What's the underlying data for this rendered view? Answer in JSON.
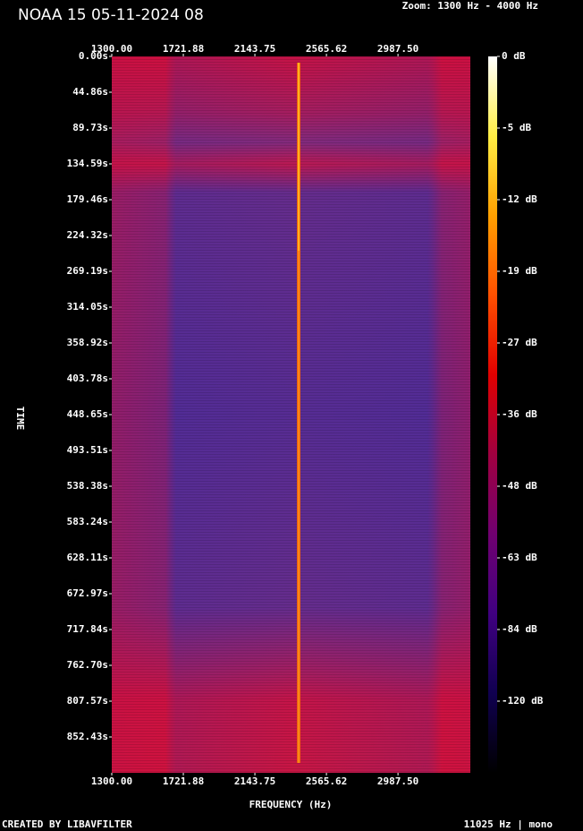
{
  "chart_data": {
    "type": "spectrogram",
    "title": "NOAA 15 05-11-2024 08",
    "subtitle": "Zoom: 1300 Hz - 4000 Hz",
    "x_label": "FREQUENCY (Hz)",
    "y_label": "TIME",
    "footer_left": "CREATED BY LIBAVFILTER",
    "footer_right": "11025 Hz | mono",
    "xlim": [
      1300,
      3414
    ],
    "xticks": [
      {
        "value": 1300,
        "label": "1300.00"
      },
      {
        "value": 1721.88,
        "label": "1721.88"
      },
      {
        "value": 2143.75,
        "label": "2143.75"
      },
      {
        "value": 2565.62,
        "label": "2565.62"
      },
      {
        "value": 2987.5,
        "label": "2987.50"
      }
    ],
    "ylim": [
      0,
      897.3
    ],
    "yticks": [
      {
        "value": 0,
        "label": "0.00s"
      },
      {
        "value": 44.86,
        "label": "44.86s"
      },
      {
        "value": 89.73,
        "label": "89.73s"
      },
      {
        "value": 134.59,
        "label": "134.59s"
      },
      {
        "value": 179.46,
        "label": "179.46s"
      },
      {
        "value": 224.32,
        "label": "224.32s"
      },
      {
        "value": 269.19,
        "label": "269.19s"
      },
      {
        "value": 314.05,
        "label": "314.05s"
      },
      {
        "value": 358.92,
        "label": "358.92s"
      },
      {
        "value": 403.78,
        "label": "403.78s"
      },
      {
        "value": 448.65,
        "label": "448.65s"
      },
      {
        "value": 493.51,
        "label": "493.51s"
      },
      {
        "value": 538.38,
        "label": "538.38s"
      },
      {
        "value": 583.24,
        "label": "583.24s"
      },
      {
        "value": 628.11,
        "label": "628.11s"
      },
      {
        "value": 672.97,
        "label": "672.97s"
      },
      {
        "value": 717.84,
        "label": "717.84s"
      },
      {
        "value": 762.7,
        "label": "762.70s"
      },
      {
        "value": 807.57,
        "label": "807.57s"
      },
      {
        "value": 852.43,
        "label": "852.43s"
      }
    ],
    "colorbar": {
      "colors": [
        "#ffffff",
        "#ffee44",
        "#ffa000",
        "#ff5000",
        "#e00000",
        "#a00040",
        "#700070",
        "#400080",
        "#100050",
        "#000000"
      ],
      "ticks": [
        {
          "value": 0,
          "label": "0 dB"
        },
        {
          "value": -5,
          "label": "-5 dB"
        },
        {
          "value": -12,
          "label": "-12 dB"
        },
        {
          "value": -19,
          "label": "-19 dB"
        },
        {
          "value": -27,
          "label": "-27 dB"
        },
        {
          "value": -36,
          "label": "-36 dB"
        },
        {
          "value": -48,
          "label": "-48 dB"
        },
        {
          "value": -63,
          "label": "-63 dB"
        },
        {
          "value": -84,
          "label": "-84 dB"
        },
        {
          "value": -120,
          "label": "-120 dB"
        }
      ]
    }
  }
}
